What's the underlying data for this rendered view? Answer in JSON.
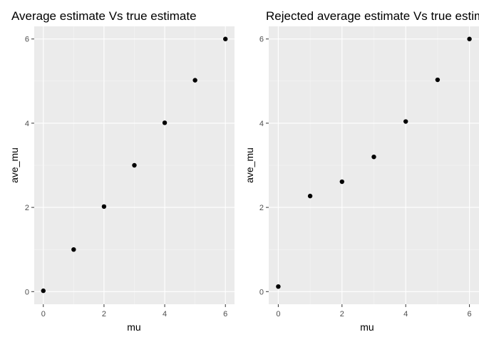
{
  "colors": {
    "panel": "#ebebeb",
    "grid_major": "#ffffff",
    "grid_minor": "#f5f5f5",
    "point": "#000000",
    "tick_text": "#4d4d4d",
    "tick_mark": "#333333"
  },
  "chart_data": [
    {
      "type": "scatter",
      "title": "Average estimate Vs true estimate",
      "xlabel": "mu",
      "ylabel": "ave_mu",
      "xlim": [
        -0.3,
        6.3
      ],
      "ylim": [
        -0.3,
        6.3
      ],
      "xticks": [
        0,
        2,
        4,
        6
      ],
      "yticks": [
        0,
        2,
        4,
        6
      ],
      "grid": true,
      "x": [
        0,
        1,
        2,
        3,
        4,
        5,
        6
      ],
      "y": [
        0.02,
        1.0,
        2.02,
        3.0,
        4.01,
        5.02,
        6.0
      ]
    },
    {
      "type": "scatter",
      "title": "Rejected average estimate Vs true estimate",
      "xlabel": "mu",
      "ylabel": "ave_mu",
      "xlim": [
        -0.3,
        6.3
      ],
      "ylim": [
        -0.3,
        6.3
      ],
      "xticks": [
        0,
        2,
        4,
        6
      ],
      "yticks": [
        0,
        2,
        4,
        6
      ],
      "grid": true,
      "x": [
        0,
        1,
        2,
        3,
        4,
        5,
        6
      ],
      "y": [
        0.12,
        2.27,
        2.61,
        3.2,
        4.04,
        5.03,
        6.0
      ]
    }
  ]
}
